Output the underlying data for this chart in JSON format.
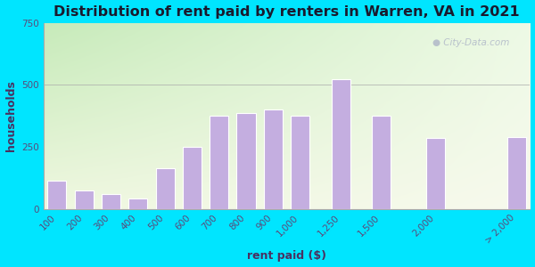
{
  "title": "Distribution of rent paid by renters in Warren, VA in 2021",
  "xlabel": "rent paid ($)",
  "ylabel": "households",
  "categories": [
    "100",
    "200",
    "300",
    "400",
    "500",
    "600",
    "700",
    "800",
    "900",
    "1,000",
    "1,250",
    "1,500",
    "2,000",
    "> 2,000"
  ],
  "values": [
    115,
    75,
    60,
    40,
    165,
    250,
    375,
    385,
    400,
    375,
    525,
    375,
    285,
    290
  ],
  "bar_color": "#c4aee0",
  "bar_edge_color": "#ffffff",
  "background_color": "#00e5ff",
  "plot_bg_top_left": "#c8e6c0",
  "plot_bg_right": "#e8f5e0",
  "plot_bg_bottom": "#f0f0e0",
  "title_color": "#1a1a2e",
  "axis_label_color": "#4a3060",
  "tick_label_color": "#5a4a7a",
  "ylim": [
    0,
    750
  ],
  "yticks": [
    0,
    250,
    500,
    750
  ],
  "title_fontsize": 11.5,
  "label_fontsize": 9,
  "tick_fontsize": 7.5,
  "watermark": "City-Data.com",
  "bar_width": 0.7,
  "x_positions": [
    0,
    1,
    2,
    3,
    4,
    5,
    6,
    7,
    8,
    9,
    10.5,
    12,
    14,
    17
  ]
}
